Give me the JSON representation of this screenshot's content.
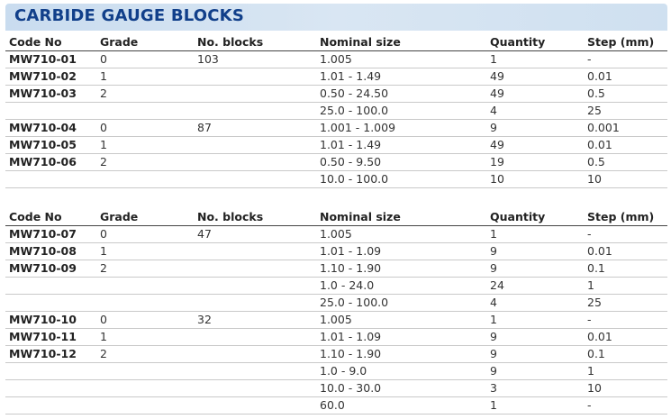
{
  "title": "CARBIDE GAUGE BLOCKS",
  "headers": [
    "Code No",
    "Grade",
    "No. blocks",
    "Nominal size",
    "Quantity",
    "Step (mm)"
  ],
  "table1": [
    [
      "MW710-01",
      "0",
      "103",
      "1.005",
      "1",
      "-"
    ],
    [
      "MW710-02",
      "1",
      "",
      "1.01 - 1.49",
      "49",
      "0.01"
    ],
    [
      "MW710-03",
      "2",
      "",
      "0.50 - 24.50",
      "49",
      "0.5"
    ],
    [
      "",
      "",
      "",
      "25.0 - 100.0",
      "4",
      "25"
    ],
    [
      "MW710-04",
      "0",
      "87",
      "1.001 - 1.009",
      "9",
      "0.001"
    ],
    [
      "MW710-05",
      "1",
      "",
      "1.01 - 1.49",
      "49",
      "0.01"
    ],
    [
      "MW710-06",
      "2",
      "",
      "0.50 - 9.50",
      "19",
      "0.5"
    ],
    [
      "",
      "",
      "",
      "10.0 - 100.0",
      "10",
      "10"
    ]
  ],
  "table2": [
    [
      "MW710-07",
      "0",
      "47",
      "1.005",
      "1",
      "-"
    ],
    [
      "MW710-08",
      "1",
      "",
      "1.01 - 1.09",
      "9",
      "0.01"
    ],
    [
      "MW710-09",
      "2",
      "",
      "1.10 - 1.90",
      "9",
      "0.1"
    ],
    [
      "",
      "",
      "",
      "1.0 - 24.0",
      "24",
      "1"
    ],
    [
      "",
      "",
      "",
      "25.0 - 100.0",
      "4",
      "25"
    ],
    [
      "MW710-10",
      "0",
      "32",
      "1.005",
      "1",
      "-"
    ],
    [
      "MW710-11",
      "1",
      "",
      "1.01 - 1.09",
      "9",
      "0.01"
    ],
    [
      "MW710-12",
      "2",
      "",
      "1.10 - 1.90",
      "9",
      "0.1"
    ],
    [
      "",
      "",
      "",
      "1.0 - 9.0",
      "9",
      "1"
    ],
    [
      "",
      "",
      "",
      "10.0 - 30.0",
      "3",
      "10"
    ],
    [
      "",
      "",
      "",
      "60.0",
      "1",
      "-"
    ]
  ]
}
